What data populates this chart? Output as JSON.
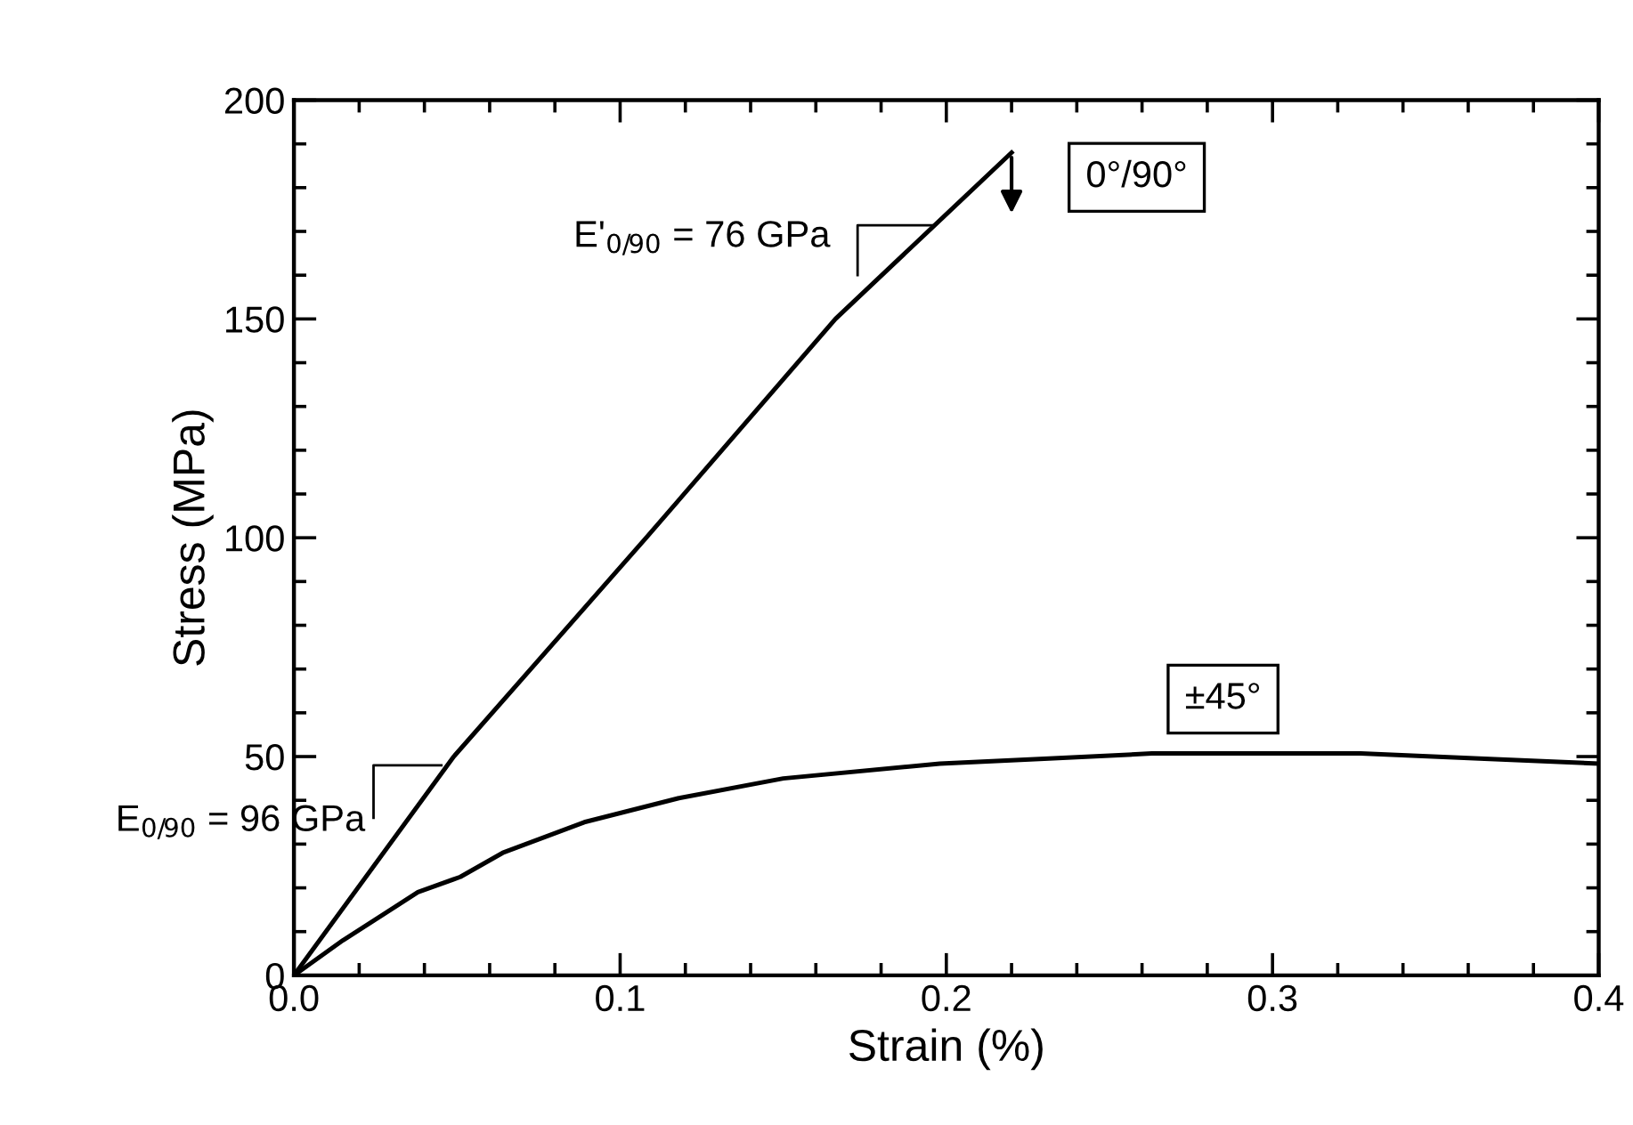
{
  "chart_data": {
    "type": "line",
    "xlabel": "Strain (%)",
    "ylabel": "Stress (MPa)",
    "xlim": [
      0,
      0.4
    ],
    "ylim": [
      0,
      200
    ],
    "xticks": [
      {
        "value": 0,
        "label": "0.0"
      },
      {
        "value": 0.1,
        "label": "0.1"
      },
      {
        "value": 0.2,
        "label": "0.2"
      },
      {
        "value": 0.3,
        "label": "0.3"
      },
      {
        "value": 0.4,
        "label": "0.4"
      }
    ],
    "yticks": [
      0,
      50,
      100,
      150,
      200
    ],
    "grid": false,
    "legend": false,
    "marker": "none",
    "line_style": "solid",
    "series": [
      {
        "color": "#000000",
        "x": [
          0,
          0.049,
          0.108,
          0.166,
          0.22
        ],
        "values": [
          0,
          50,
          100,
          150,
          188
        ]
      },
      {
        "color": "#000000",
        "x": [
          0,
          0.015,
          0.038,
          0.051,
          0.064,
          0.089,
          0.118,
          0.15,
          0.198,
          0.23,
          0.263,
          0.327,
          0.365,
          0.4
        ],
        "values": [
          0,
          8,
          19,
          22.5,
          28,
          35,
          40.5,
          45,
          48.4,
          49.5,
          50.7,
          50.7,
          49.5,
          48.4
        ]
      }
    ],
    "annotations": [
      {
        "text": "E$_{0/90}$ = 96 GPa",
        "x": 0.034,
        "y": 35
      },
      {
        "text": "E'$_{0/90}$ = 76 GPa",
        "x": 0.185,
        "y": 160
      },
      {
        "text": "0°/90°",
        "x": 0.22,
        "y": 188
      },
      {
        "text": "±45°",
        "x": 0.3,
        "y": 50.7
      }
    ]
  }
}
